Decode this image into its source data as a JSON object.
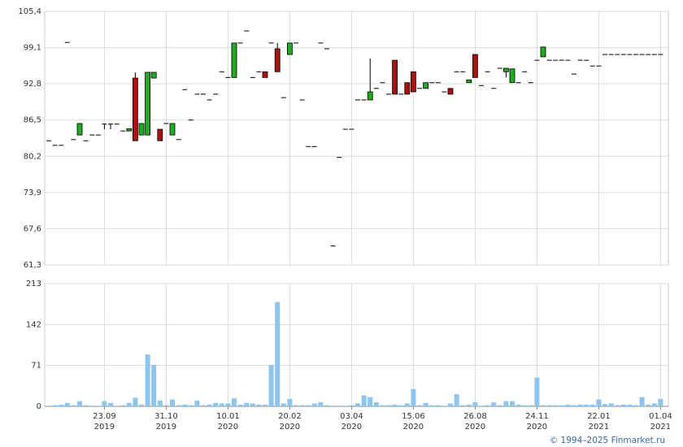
{
  "chart_data": {
    "type": "candlestick",
    "up_color": "#22aa22",
    "down_color": "#aa1111",
    "grid": true,
    "categories": [
      null,
      null,
      null,
      null,
      null,
      null,
      null,
      null,
      null,
      [
        "23.09",
        "2019"
      ],
      null,
      null,
      null,
      null,
      null,
      null,
      null,
      null,
      null,
      [
        "31.10",
        "2019"
      ],
      null,
      null,
      null,
      null,
      null,
      null,
      null,
      null,
      null,
      [
        "10.01",
        "2020"
      ],
      null,
      null,
      null,
      null,
      null,
      null,
      null,
      null,
      null,
      [
        "20.02",
        "2020"
      ],
      null,
      null,
      null,
      null,
      null,
      null,
      null,
      null,
      null,
      [
        "03.04",
        "2020"
      ],
      null,
      null,
      null,
      null,
      null,
      null,
      null,
      null,
      null,
      [
        "15.06",
        "2020"
      ],
      null,
      null,
      null,
      null,
      null,
      null,
      null,
      null,
      null,
      [
        "26.08",
        "2020"
      ],
      null,
      null,
      null,
      null,
      null,
      null,
      null,
      null,
      null,
      [
        "24.11",
        "2020"
      ],
      null,
      null,
      null,
      null,
      null,
      null,
      null,
      null,
      null,
      [
        "22.01",
        "2021"
      ],
      null,
      null,
      null,
      null,
      null,
      null,
      null,
      null,
      null,
      [
        "01.04",
        "2021"
      ]
    ],
    "open": [
      82.9,
      82.1,
      82.1,
      100,
      83.1,
      83.9,
      82.9,
      83.9,
      83.9,
      85.8,
      85.8,
      85.8,
      84.6,
      84.6,
      93.8,
      83.9,
      83.9,
      93.8,
      84.9,
      85.9,
      83.9,
      83.1,
      91.8,
      86.5,
      91.0,
      91.0,
      90.0,
      91.0,
      94.9,
      93.9,
      93.9,
      99.9,
      102.0,
      93.9,
      94.9,
      94.9,
      99.9,
      98.9,
      90.4,
      97.9,
      99.9,
      90.0,
      81.9,
      81.9,
      99.9,
      98.9,
      64.6,
      80.0,
      84.9,
      84.9,
      90.0,
      90.0,
      90.0,
      92.0,
      93.0,
      91.0,
      96.9,
      91.0,
      93.0,
      94.9,
      92.0,
      92.0,
      93.0,
      93.0,
      91.4,
      92.0,
      94.9,
      94.9,
      93.0,
      97.9,
      92.5,
      94.9,
      92.0,
      95.5,
      94.9,
      93.0,
      93.0,
      94.9,
      93.0,
      96.9,
      97.5,
      96.9,
      96.9,
      96.9,
      96.9,
      94.5,
      96.9,
      96.9,
      95.9,
      95.9,
      97.9,
      97.9,
      97.9,
      97.9,
      97.9,
      97.9,
      97.9,
      97.9,
      97.9,
      97.9
    ],
    "high": [
      82.9,
      82.1,
      82.1,
      100,
      83.1,
      85.9,
      82.9,
      83.9,
      83.9,
      85.8,
      85.8,
      85.8,
      84.6,
      85.0,
      94.8,
      85.9,
      94.8,
      94.8,
      84.9,
      85.9,
      85.9,
      83.1,
      91.8,
      86.5,
      91.0,
      91.0,
      90.0,
      91.0,
      94.9,
      93.9,
      99.9,
      99.9,
      102.0,
      93.9,
      94.9,
      94.9,
      99.9,
      99.9,
      90.4,
      99.9,
      99.9,
      90.0,
      81.9,
      81.9,
      99.9,
      98.9,
      64.6,
      80.0,
      84.9,
      84.9,
      90.0,
      90.0,
      97.2,
      92.0,
      93.0,
      91.0,
      96.9,
      91.0,
      93.0,
      94.9,
      92.0,
      93.0,
      93.0,
      93.0,
      91.4,
      92.0,
      94.9,
      94.9,
      93.5,
      97.9,
      92.5,
      94.9,
      92.0,
      95.5,
      95.5,
      95.4,
      93.0,
      94.9,
      93.0,
      96.9,
      99.2,
      96.9,
      96.9,
      96.9,
      96.9,
      94.5,
      96.9,
      96.9,
      95.9,
      95.9,
      97.9,
      97.9,
      97.9,
      97.9,
      97.9,
      97.9,
      97.9,
      97.9,
      97.9,
      97.9
    ],
    "low": [
      82.9,
      82.1,
      82.1,
      100,
      83.1,
      83.9,
      82.9,
      83.9,
      83.9,
      84.9,
      84.9,
      85.8,
      84.6,
      84.6,
      82.9,
      83.9,
      83.9,
      93.8,
      82.9,
      85.9,
      83.9,
      83.1,
      91.8,
      86.5,
      91.0,
      91.0,
      90.0,
      91.0,
      94.9,
      93.9,
      93.9,
      99.9,
      102.0,
      93.9,
      94.9,
      93.9,
      99.9,
      94.9,
      90.4,
      97.9,
      99.9,
      90.0,
      81.9,
      81.9,
      99.9,
      98.9,
      64.6,
      80.0,
      84.9,
      84.9,
      90.0,
      90.0,
      90.0,
      92.0,
      93.0,
      91.0,
      91.0,
      91.0,
      91.0,
      91.4,
      92.0,
      92.0,
      93.0,
      93.0,
      91.4,
      91.0,
      94.9,
      94.9,
      93.0,
      93.9,
      92.5,
      94.9,
      92.0,
      95.5,
      93.9,
      93.0,
      93.0,
      94.9,
      93.0,
      96.9,
      97.5,
      96.9,
      96.9,
      96.9,
      96.9,
      94.5,
      96.9,
      96.9,
      95.9,
      95.9,
      97.9,
      97.9,
      97.9,
      97.9,
      97.9,
      97.9,
      97.9,
      97.9,
      97.9,
      97.9
    ],
    "close": [
      82.9,
      82.1,
      82.1,
      100,
      83.1,
      85.9,
      82.9,
      83.9,
      83.9,
      85.8,
      85.8,
      85.8,
      84.6,
      85.0,
      82.9,
      85.9,
      94.8,
      94.8,
      82.9,
      85.9,
      85.9,
      83.1,
      91.8,
      86.5,
      91.0,
      91.0,
      90.0,
      91.0,
      94.9,
      93.9,
      99.9,
      99.9,
      102.0,
      93.9,
      94.9,
      93.9,
      99.9,
      94.9,
      90.4,
      99.9,
      99.9,
      90.0,
      81.9,
      81.9,
      99.9,
      98.9,
      64.6,
      80.0,
      84.9,
      84.9,
      90.0,
      90.0,
      91.4,
      92.0,
      93.0,
      91.0,
      91.0,
      91.0,
      91.0,
      91.4,
      92.0,
      93.0,
      93.0,
      93.0,
      91.4,
      91.0,
      94.9,
      94.9,
      93.5,
      93.9,
      92.5,
      94.9,
      92.0,
      95.5,
      95.5,
      95.4,
      93.0,
      94.9,
      93.0,
      96.9,
      99.2,
      96.9,
      96.9,
      96.9,
      96.9,
      94.5,
      96.9,
      96.9,
      95.9,
      95.9,
      97.9,
      97.9,
      97.9,
      97.9,
      97.9,
      97.9,
      97.9,
      97.9,
      97.9,
      97.9
    ],
    "ylim": [
      61.3,
      105.4
    ],
    "yticks": [
      {
        "value": 61.3,
        "label": "61,3"
      },
      {
        "value": 67.6,
        "label": "67,6"
      },
      {
        "value": 73.9,
        "label": "73,9"
      },
      {
        "value": 80.2,
        "label": "80,2"
      },
      {
        "value": 86.5,
        "label": "86,5"
      },
      {
        "value": 92.8,
        "label": "92,8"
      },
      {
        "value": 99.1,
        "label": "99,1"
      },
      {
        "value": 105.4,
        "label": "105,4"
      }
    ],
    "volume": {
      "color": "#8cc6ee",
      "values": [
        1,
        2,
        3,
        6,
        2,
        9,
        2,
        1,
        1,
        9,
        6,
        1,
        2,
        6,
        15,
        3,
        90,
        72,
        10,
        2,
        12,
        2,
        3,
        2,
        10,
        2,
        3,
        6,
        5,
        5,
        14,
        3,
        6,
        5,
        3,
        3,
        72,
        181,
        5,
        13,
        2,
        2,
        2,
        5,
        7,
        2,
        1,
        1,
        1,
        2,
        5,
        19,
        16,
        7,
        2,
        2,
        3,
        2,
        5,
        30,
        2,
        6,
        2,
        2,
        1,
        5,
        21,
        2,
        3,
        7,
        1,
        2,
        7,
        2,
        9,
        9,
        3,
        2,
        2,
        50,
        2,
        2,
        2,
        2,
        3,
        2,
        3,
        3,
        3,
        12,
        4,
        5,
        2,
        3,
        3,
        2,
        16,
        3,
        5,
        13
      ],
      "ylim": [
        0,
        213
      ],
      "yticks": [
        0,
        71,
        142,
        213
      ]
    },
    "footer": "© 1994–2025 Finmarket.ru"
  }
}
